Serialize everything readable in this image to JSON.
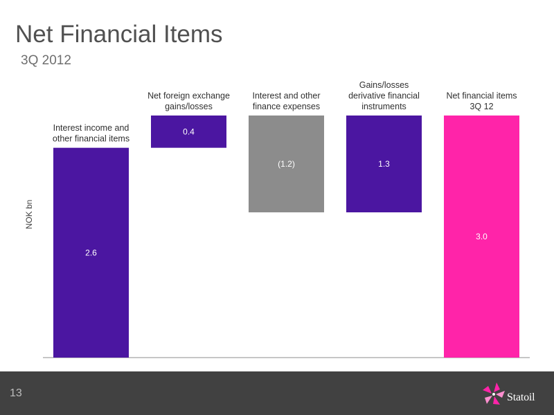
{
  "slide": {
    "title": "Net Financial Items",
    "subtitle": "3Q 2012",
    "page_number": "13",
    "logo_text": "Statoil"
  },
  "colors": {
    "purple": "#4b16a1",
    "gray": "#8c8c8c",
    "pink": "#ff24a9",
    "footer": "#414141"
  },
  "chart_data": {
    "type": "bar",
    "subtype": "waterfall",
    "ylabel": "NOK bn",
    "ylim": [
      0,
      3.0
    ],
    "categories": [
      [
        "Interest income and",
        "other financial items"
      ],
      [
        "Net foreign exchange",
        "gains/losses"
      ],
      [
        "Interest and other",
        "finance expenses"
      ],
      [
        "Gains/losses",
        "derivative financial",
        "instruments"
      ],
      [
        "Net financial items",
        "3Q 12"
      ]
    ],
    "bars": [
      {
        "start": 0,
        "end": 2.6,
        "label": "2.6",
        "color": "#4b16a1"
      },
      {
        "start": 2.6,
        "end": 3.0,
        "label": "0.4",
        "color": "#4b16a1"
      },
      {
        "start": 3.0,
        "end": 1.8,
        "label": "(1.2)",
        "color": "#8c8c8c"
      },
      {
        "start": 1.8,
        "end": 3.0,
        "label": "1.3",
        "color": "#4b16a1"
      },
      {
        "start": 0,
        "end": 3.0,
        "label": "3.0",
        "color": "#ff24a9"
      }
    ]
  }
}
